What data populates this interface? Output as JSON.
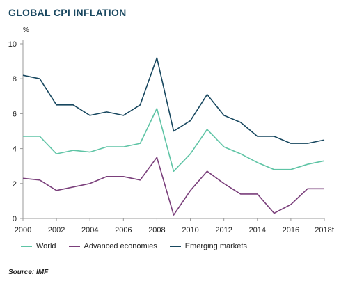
{
  "title": "GLOBAL CPI INFLATION",
  "unit_label": "%",
  "source": "Source: IMF",
  "colors": {
    "title": "#1a4860",
    "world": "#5ec4a5",
    "advanced": "#7a3f7b",
    "emerging": "#17475f",
    "axis": "#999999",
    "text": "#222222"
  },
  "chart_data": {
    "type": "line",
    "title": "GLOBAL CPI INFLATION",
    "xlabel": "",
    "ylabel": "%",
    "x": [
      2000,
      2001,
      2002,
      2003,
      2004,
      2005,
      2006,
      2007,
      2008,
      2009,
      2010,
      2011,
      2012,
      2013,
      2014,
      2015,
      2016,
      2017,
      2018
    ],
    "x_tick_labels": [
      "2000",
      "2002",
      "2004",
      "2006",
      "2008",
      "2010",
      "2012",
      "2014",
      "2016",
      "2018f"
    ],
    "y_ticks": [
      "0",
      "2",
      "4",
      "6",
      "8",
      "10"
    ],
    "ylim": [
      0,
      10
    ],
    "grid": false,
    "legend_position": "bottom-left",
    "series": [
      {
        "name": "World",
        "color": "#5ec4a5",
        "values": [
          4.7,
          4.7,
          3.7,
          3.9,
          3.8,
          4.1,
          4.1,
          4.3,
          6.3,
          2.7,
          3.7,
          5.1,
          4.1,
          3.7,
          3.2,
          2.8,
          2.8,
          3.1,
          3.3
        ]
      },
      {
        "name": "Advanced economies",
        "color": "#7a3f7b",
        "values": [
          2.3,
          2.2,
          1.6,
          1.8,
          2.0,
          2.4,
          2.4,
          2.2,
          3.5,
          0.2,
          1.6,
          2.7,
          2.0,
          1.4,
          1.4,
          0.3,
          0.8,
          1.7,
          1.7
        ]
      },
      {
        "name": "Emerging markets",
        "color": "#17475f",
        "values": [
          8.2,
          8.0,
          6.5,
          6.5,
          5.9,
          6.1,
          5.9,
          6.5,
          9.2,
          5.0,
          5.6,
          7.1,
          5.9,
          5.5,
          4.7,
          4.7,
          4.3,
          4.3,
          4.5
        ]
      }
    ]
  }
}
